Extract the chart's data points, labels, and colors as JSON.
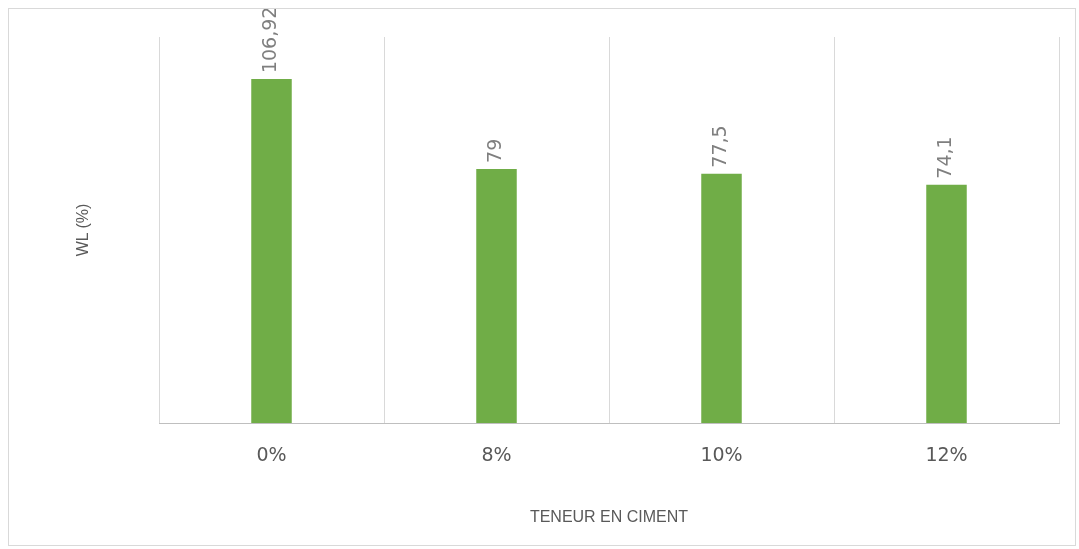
{
  "chart_data": {
    "type": "bar",
    "xlabel": "TENEUR EN CIMENT",
    "ylabel": "WL (%)",
    "categories": [
      "0%",
      "8%",
      "10%",
      "12%"
    ],
    "values": [
      106.92,
      79,
      77.5,
      74.1
    ],
    "color": "#70ad47",
    "ylim": [
      0,
      120
    ],
    "value_labels": [
      "106,92",
      "79",
      "77,5",
      "74,1"
    ],
    "grid": "x",
    "tick_labels": "x",
    "legend": false
  }
}
